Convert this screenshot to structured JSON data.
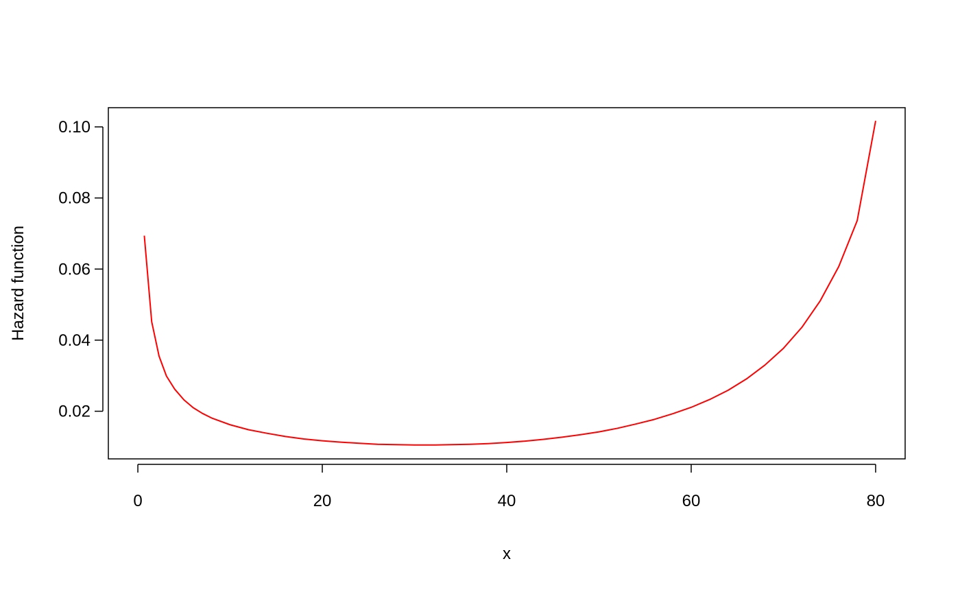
{
  "chart_data": {
    "type": "line",
    "title": "",
    "xlabel": "x",
    "ylabel": "Hazard function",
    "xlim": [
      -3.2,
      83.2
    ],
    "ylim": [
      0.0066,
      0.1054
    ],
    "x_ticks": [
      0,
      20,
      40,
      60,
      80
    ],
    "y_ticks": [
      0.02,
      0.04,
      0.06,
      0.08,
      0.1
    ],
    "x_tick_labels": [
      "0",
      "20",
      "40",
      "60",
      "80"
    ],
    "y_tick_labels": [
      "0.02",
      "0.04",
      "0.06",
      "0.08",
      "0.10"
    ],
    "grid": false,
    "series": [
      {
        "color": "#ff0000",
        "x": [
          0.7,
          1.5,
          2.3,
          3.1,
          4,
          5,
          6,
          7,
          8,
          10,
          12,
          14,
          16,
          18,
          20,
          22,
          24,
          26,
          28,
          30,
          32,
          34,
          36,
          38,
          40,
          42,
          44,
          46,
          48,
          50,
          52,
          54,
          56,
          58,
          60,
          62,
          64,
          66,
          68,
          70,
          72,
          74,
          76,
          78,
          80
        ],
        "y": [
          0.0694,
          0.0452,
          0.0355,
          0.0299,
          0.0262,
          0.0232,
          0.021,
          0.0194,
          0.0181,
          0.0162,
          0.0148,
          0.0138,
          0.0129,
          0.0122,
          0.0117,
          0.0113,
          0.011,
          0.0107,
          0.0106,
          0.0105,
          0.0105,
          0.0106,
          0.0107,
          0.0109,
          0.0112,
          0.0116,
          0.0121,
          0.0127,
          0.0134,
          0.0142,
          0.0152,
          0.0164,
          0.0177,
          0.0193,
          0.0211,
          0.0233,
          0.0259,
          0.0291,
          0.033,
          0.0377,
          0.0436,
          0.0511,
          0.0607,
          0.0736,
          0.1017
        ]
      }
    ]
  }
}
